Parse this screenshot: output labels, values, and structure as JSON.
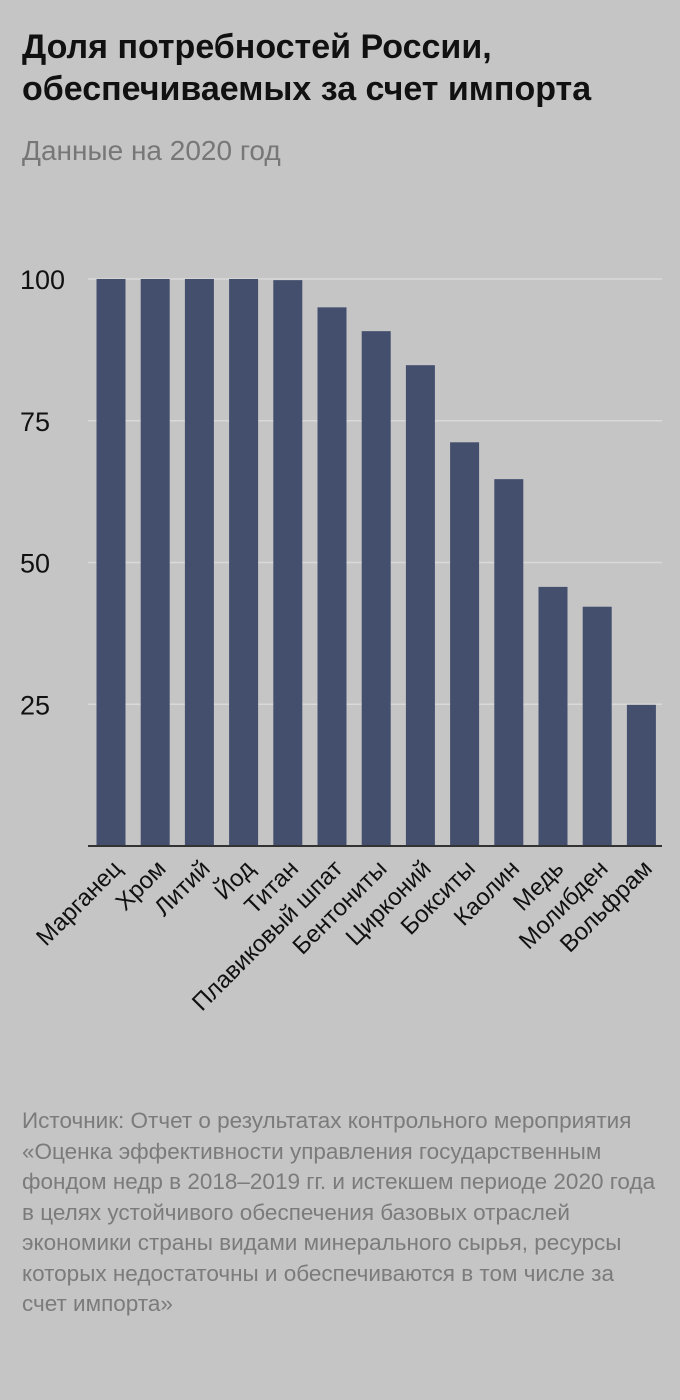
{
  "header": {
    "title": "Доля потребностей России, обеспечиваемых за счет импорта",
    "subtitle": "Данные на 2020 год"
  },
  "footer": {
    "source": "Источник: Отчет о результатах контрольного мероприятия «Оценка эффективности управления государственным фондом недр в 2018–2019 гг. и истекшем периоде 2020 года в целях устойчивого обеспечения базовых отраслей экономики страны видами минерального сырья, ресурсы которых недостаточны и обеспечиваются в том числе за счет импорта»"
  },
  "colors": {
    "background": "#c5c5c5",
    "bar": "#444f6e",
    "grid": "#d9d9d9",
    "text": "#111111",
    "muted": "#7b7b7b"
  },
  "chart_data": {
    "type": "bar",
    "categories": [
      "Марганец",
      "Хром",
      "Литий",
      "Йод",
      "Титан",
      "Плавиковый шпат",
      "Бентониты",
      "Цирконий",
      "Бокситы",
      "Каолин",
      "Медь",
      "Молибден",
      "Вольфрам"
    ],
    "values": [
      100,
      100,
      100,
      100,
      99.8,
      95,
      90.8,
      84.8,
      71.2,
      64.7,
      45.7,
      42.2,
      24.9
    ],
    "yticks": [
      25,
      50,
      75,
      100
    ],
    "ylim": [
      0,
      100
    ],
    "grid": true,
    "title": "Доля потребностей России, обеспечиваемых за счет импорта",
    "subtitle": "Данные на 2020 год",
    "xlabel": "",
    "ylabel": ""
  }
}
